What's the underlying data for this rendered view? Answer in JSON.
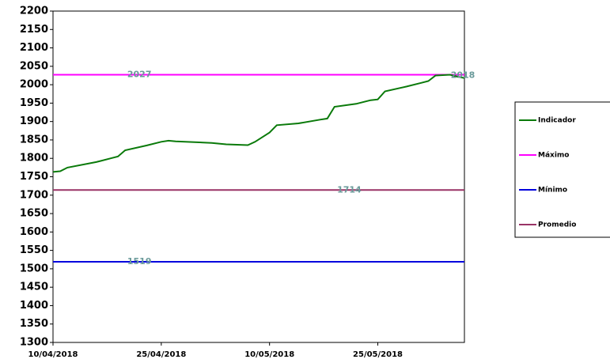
{
  "chart_data": {
    "type": "line",
    "x": [
      "2018-04-10",
      "2018-04-11",
      "2018-04-12",
      "2018-04-16",
      "2018-04-18",
      "2018-04-19",
      "2018-04-20",
      "2018-04-23",
      "2018-04-25",
      "2018-04-26",
      "2018-04-27",
      "2018-05-02",
      "2018-05-04",
      "2018-05-07",
      "2018-05-08",
      "2018-05-10",
      "2018-05-11",
      "2018-05-14",
      "2018-05-17",
      "2018-05-18",
      "2018-05-19",
      "2018-05-22",
      "2018-05-24",
      "2018-05-25",
      "2018-05-26",
      "2018-05-29",
      "2018-05-31",
      "2018-06-01",
      "2018-06-02",
      "2018-06-04",
      "2018-06-05",
      "2018-06-06"
    ],
    "series": [
      {
        "name": "Indicador",
        "color": "#0a7a0a",
        "values": [
          1763,
          1765,
          1775,
          1790,
          1800,
          1805,
          1822,
          1835,
          1845,
          1848,
          1846,
          1842,
          1838,
          1836,
          1845,
          1870,
          1890,
          1895,
          1905,
          1908,
          1940,
          1948,
          1958,
          1960,
          1982,
          1995,
          2005,
          2010,
          2025,
          2027,
          2022,
          2018
        ]
      }
    ],
    "reference_lines": [
      {
        "name": "Máximo",
        "color": "#ff00ff",
        "value": 2027
      },
      {
        "name": "Mínimo",
        "color": "#0000dd",
        "value": 1519
      },
      {
        "name": "Promedio",
        "color": "#993366",
        "value": 1714
      }
    ],
    "xlim": [
      "2018-04-10",
      "2018-06-06"
    ],
    "xticks": [
      {
        "value": "2018-04-10",
        "label": "10/04/2018"
      },
      {
        "value": "2018-04-25",
        "label": "25/04/2018"
      },
      {
        "value": "2018-05-10",
        "label": "10/05/2018"
      },
      {
        "value": "2018-05-25",
        "label": "25/05/2018"
      }
    ],
    "ylim": [
      1300,
      2200
    ],
    "yticks": [
      1300,
      1350,
      1400,
      1450,
      1500,
      1550,
      1600,
      1650,
      1700,
      1750,
      1800,
      1850,
      1900,
      1950,
      2000,
      2050,
      2100,
      2150,
      2200
    ],
    "grid": false,
    "legend": "right"
  }
}
